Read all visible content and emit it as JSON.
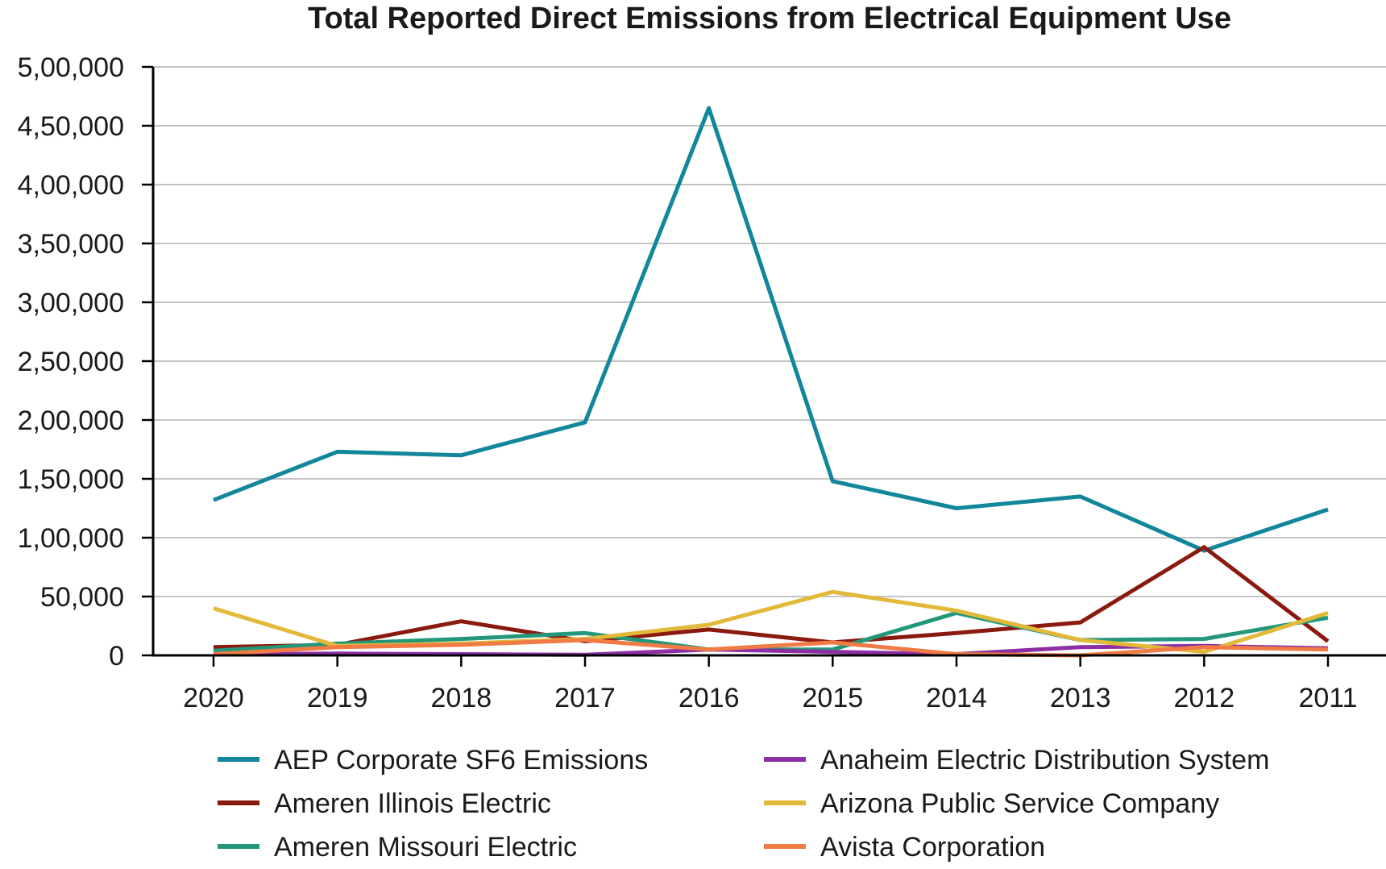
{
  "chart_data": {
    "type": "line",
    "title": "Total Reported Direct Emissions from Electrical Equipment Use",
    "xlabel": "",
    "ylabel": "",
    "categories": [
      "2020",
      "2019",
      "2018",
      "2017",
      "2016",
      "2015",
      "2014",
      "2013",
      "2012",
      "2011"
    ],
    "ylim": [
      0,
      500000
    ],
    "yticks": [
      0,
      50000,
      100000,
      150000,
      200000,
      250000,
      300000,
      350000,
      400000,
      450000,
      500000
    ],
    "ytick_labels": [
      "0",
      "50,000",
      "1,00,000",
      "1,50,000",
      "2,00,000",
      "2,50,000",
      "3,00,000",
      "3,50,000",
      "4,00,000",
      "4,50,000",
      "5,00,000"
    ],
    "grid": "horizontal",
    "legend_position": "bottom",
    "series": [
      {
        "name": "AEP Corporate SF6 Emissions",
        "color": "#12869b",
        "values": [
          132000,
          173000,
          170000,
          198000,
          465000,
          148000,
          125000,
          135000,
          89000,
          124000
        ]
      },
      {
        "name": "Ameren Illinois Electric",
        "color": "#8b1a0e",
        "values": [
          7000,
          9000,
          29000,
          12000,
          22000,
          11000,
          19000,
          28000,
          92000,
          12000
        ]
      },
      {
        "name": "Ameren Missouri Electric",
        "color": "#24977b",
        "values": [
          4000,
          10000,
          14000,
          19000,
          5000,
          5000,
          36000,
          13000,
          14000,
          32000
        ]
      },
      {
        "name": "Anaheim Electric Distribution System",
        "color": "#8c2fa4",
        "values": [
          1000,
          1500,
          1000,
          500,
          5000,
          3000,
          1000,
          7000,
          8000,
          6000
        ]
      },
      {
        "name": "Arizona Public Service Company",
        "color": "#e3b93a",
        "values": [
          40000,
          8000,
          10000,
          14000,
          26000,
          54000,
          38000,
          13000,
          3000,
          36000
        ]
      },
      {
        "name": "Avista Corporation",
        "color": "#f07b45",
        "values": [
          1000,
          7000,
          9000,
          13000,
          5000,
          11000,
          1000,
          0,
          7000,
          5000
        ]
      }
    ]
  }
}
